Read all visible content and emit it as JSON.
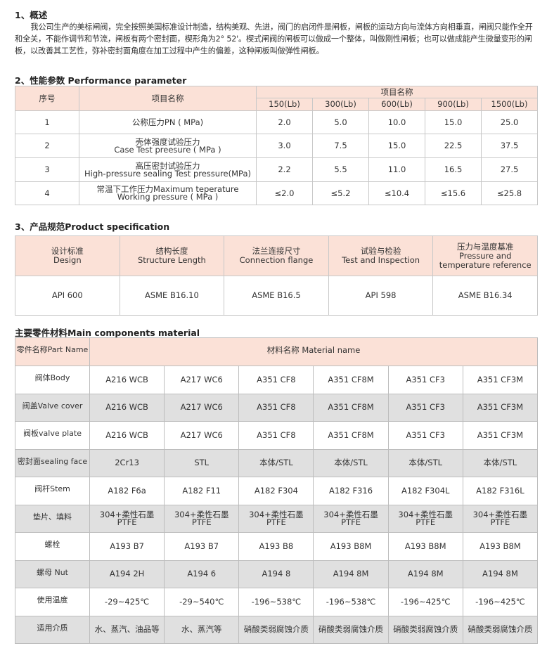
{
  "section1": {
    "heading": "1、概述",
    "text": "我公司生产的美标闸阀，完全按照美国标准设计制造，结构美观、先进，阀门的启闭件是闸板，闸板的运动方向与流体方向相垂直，闸阀只能作全开和全关，不能作调节和节流，闸板有两个密封面，楔形角为2° 52'。楔式闸阀的闸板可以做成一个整体，叫做刚性闸板；也可以做成能产生微量变形的闸板，以改善其工艺性，弥补密封面角度在加工过程中产生的偏差，这种闸板叫做弹性闸板。"
  },
  "section2": {
    "heading": "2、性能参数 Performance parameter",
    "headers": {
      "no": "序号",
      "item": "项目名称",
      "group": "项目名称",
      "classes": [
        "150(Lb)",
        "300(Lb)",
        "600(Lb)",
        "900(Lb)",
        "1500(Lb)"
      ]
    },
    "rows": [
      {
        "no": "1",
        "item_cn": "公称压力PN ( MPa)",
        "item_en": "",
        "values": [
          "2.0",
          "5.0",
          "10.0",
          "15.0",
          "25.0"
        ]
      },
      {
        "no": "2",
        "item_cn": "壳体强度试验压力",
        "item_en": "Case Test preesure ( MPa )",
        "values": [
          "3.0",
          "7.5",
          "15.0",
          "22.5",
          "37.5"
        ]
      },
      {
        "no": "3",
        "item_cn": "高压密封试验压力",
        "item_en": "High-pressure sealing Test pressure(MPa)",
        "values": [
          "2.2",
          "5.5",
          "11.0",
          "16.5",
          "27.5"
        ]
      },
      {
        "no": "4",
        "item_cn": "常温下工作压力Maximum teperature",
        "item_en": "Working pressure ( MPa )",
        "values": [
          "≤2.0",
          "≤5.2",
          "≤10.4",
          "≤15.6",
          "≤25.8"
        ]
      }
    ]
  },
  "section3": {
    "heading": "3、产品规范Product specification",
    "headers": [
      {
        "cn": "设计标准",
        "en": "Design"
      },
      {
        "cn": "结构长度",
        "en": "Structure Length"
      },
      {
        "cn": "法兰连接尺寸",
        "en": "Connection flange"
      },
      {
        "cn": "试验与检验",
        "en": "Test and Inspection"
      },
      {
        "cn": "压力与温度基准",
        "en": "Pressure and temperature reference"
      }
    ],
    "values": [
      "API 600",
      "ASME B16.10",
      "ASME B16.5",
      "API 598",
      "ASME B16.34"
    ]
  },
  "section4": {
    "heading": "主要零件材料Main components material",
    "part_header": "零件名称Part Name",
    "material_header": "材料名称 Material name",
    "rows": [
      {
        "part": "阀体Body",
        "values": [
          "A216 WCB",
          "A217 WC6",
          "A351 CF8",
          "A351 CF8M",
          "A351 CF3",
          "A351 CF3M"
        ]
      },
      {
        "part": "阀盖Valve cover",
        "values": [
          "A216 WCB",
          "A217 WC6",
          "A351 CF8",
          "A351 CF8M",
          "A351 CF3",
          "A351 CF3M"
        ]
      },
      {
        "part": "阀板valve plate",
        "values": [
          "A216 WCB",
          "A217 WC6",
          "A351 CF8",
          "A351 CF8M",
          "A351 CF3",
          "A351 CF3M"
        ]
      },
      {
        "part": "密封面sealing face",
        "values": [
          "2Cr13",
          "STL",
          "本体/STL",
          "本体/STL",
          "本体/STL",
          "本体/STL"
        ]
      },
      {
        "part": "阀杆Stem",
        "values": [
          "A182 F6a",
          "A182 F11",
          "A182 F304",
          "A182 F316",
          "A182 F304L",
          "A182 F316L"
        ]
      },
      {
        "part": "垫片、填料",
        "values": [
          "304+柔性石墨 PTFE",
          "304+柔性石墨 PTFE",
          "304+柔性石墨 PTFE",
          "304+柔性石墨 PTFE",
          "304+柔性石墨 PTFE",
          "304+柔性石墨 PTFE"
        ]
      },
      {
        "part": "螺栓",
        "values": [
          "A193 B7",
          "A193 B7",
          "A193 B8",
          "A193 B8M",
          "A193 B8M",
          "A193 B8M"
        ]
      },
      {
        "part": "螺母 Nut",
        "values": [
          "A194 2H",
          "A194 6",
          "A194 8",
          "A194 8M",
          "A194 8M",
          "A194 8M"
        ]
      },
      {
        "part": "使用温度",
        "values": [
          "-29~425℃",
          "-29~540℃",
          "-196~538℃",
          "-196~538℃",
          "-196~425℃",
          "-196~425℃"
        ]
      },
      {
        "part": "适用介质",
        "values": [
          "水、蒸汽、油品等",
          "水、蒸汽等",
          "硝酸类弱腐蚀介质",
          "硝酸类弱腐蚀介质",
          "硝酸类弱腐蚀介质",
          "硝酸类弱腐蚀介质"
        ]
      }
    ]
  },
  "colors": {
    "header_bg": "#fbe1d7",
    "alt_row_bg": "#e0e0e0",
    "border": "#c8c8c8"
  }
}
